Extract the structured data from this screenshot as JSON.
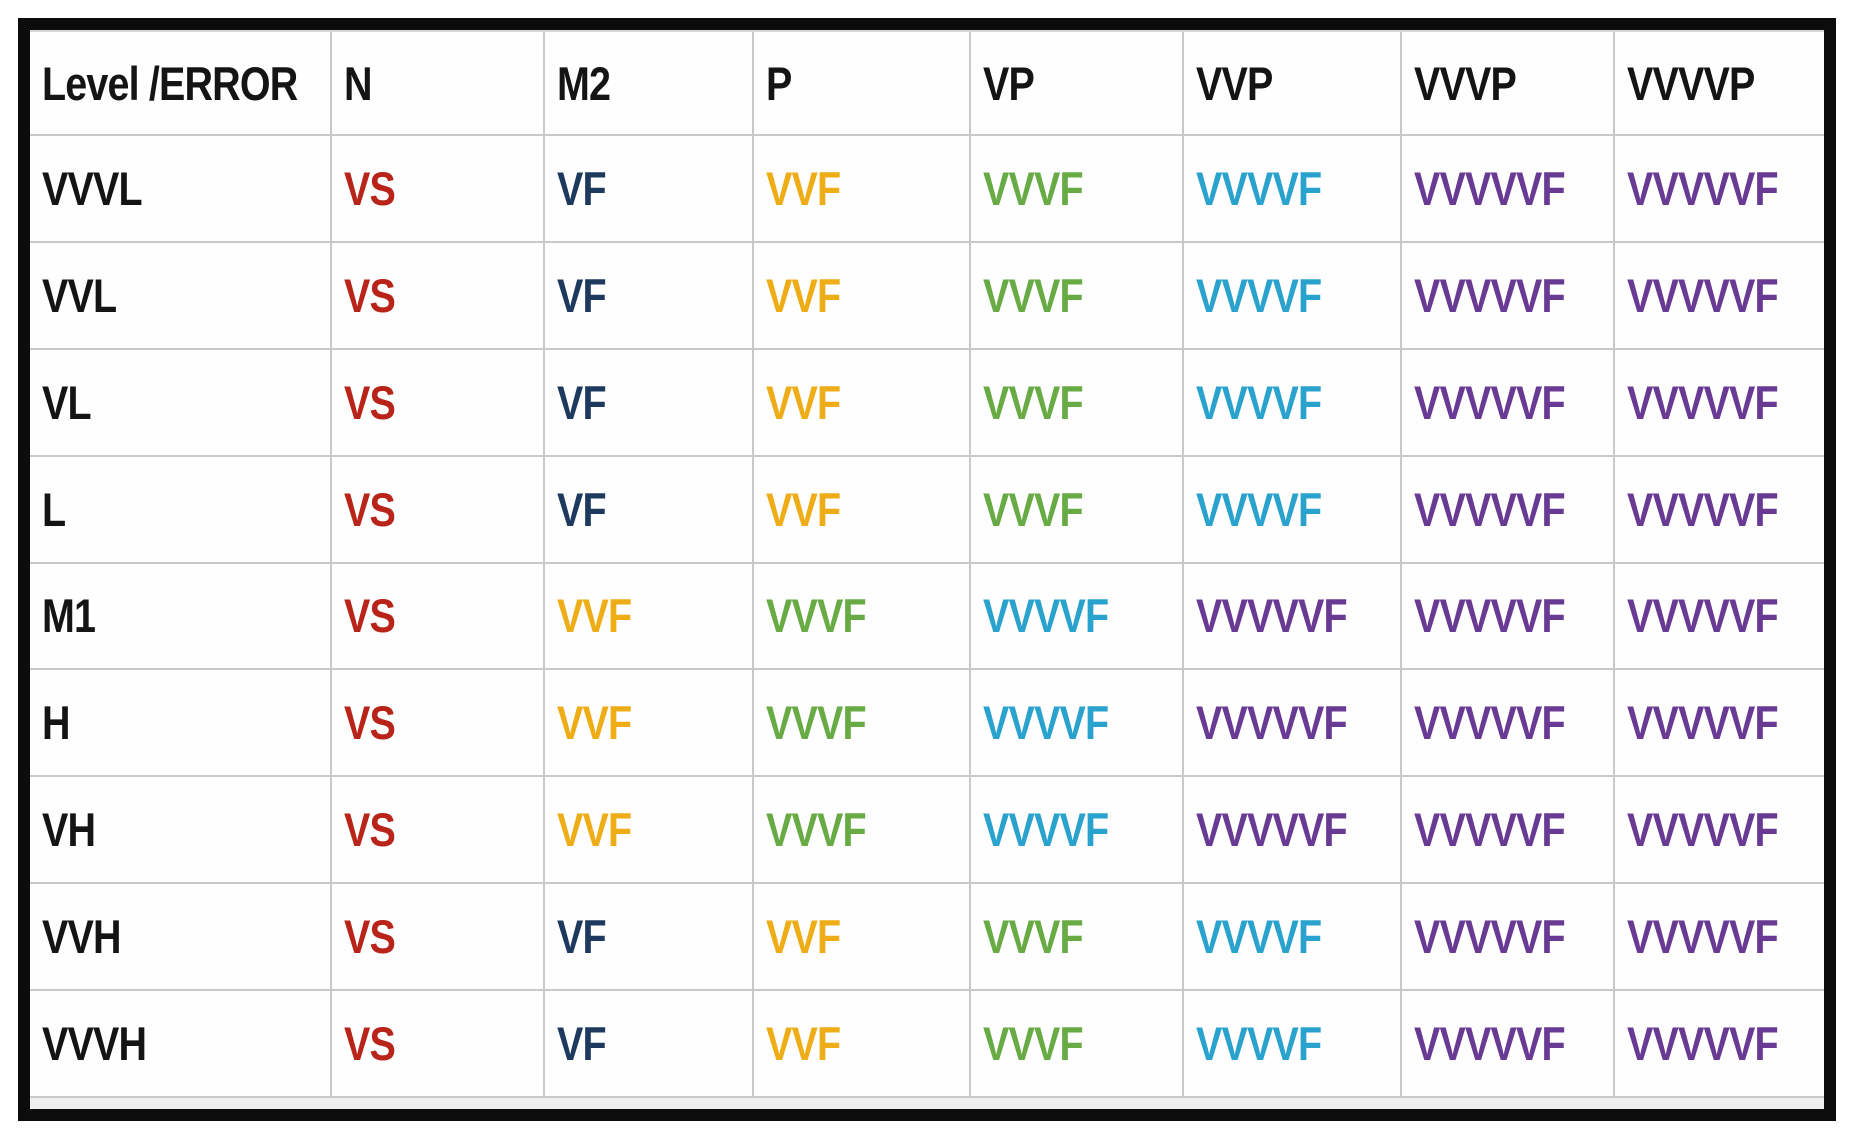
{
  "table": {
    "header": {
      "corner": "Level /ERROR",
      "columns": [
        "N",
        "M2",
        "P",
        "VP",
        "VVP",
        "VVVP",
        "VVVVP"
      ]
    },
    "palette": {
      "red": "#b9241a",
      "navy": "#1d3a5e",
      "yellow": "#eead16",
      "green": "#68ab44",
      "cyan": "#29a2cd",
      "purple": "#683a94",
      "black": "#141414"
    },
    "rows": [
      {
        "label": "VVVL",
        "cells": [
          {
            "text": "VS",
            "color": "red"
          },
          {
            "text": "VF",
            "color": "navy"
          },
          {
            "text": "VVF",
            "color": "yellow"
          },
          {
            "text": "VVVF",
            "color": "green"
          },
          {
            "text": "VVVVF",
            "color": "cyan"
          },
          {
            "text": "VVVVVF",
            "color": "purple"
          },
          {
            "text": "VVVVVF",
            "color": "purple"
          }
        ]
      },
      {
        "label": "VVL",
        "cells": [
          {
            "text": "VS",
            "color": "red"
          },
          {
            "text": "VF",
            "color": "navy"
          },
          {
            "text": "VVF",
            "color": "yellow"
          },
          {
            "text": "VVVF",
            "color": "green"
          },
          {
            "text": "VVVVF",
            "color": "cyan"
          },
          {
            "text": "VVVVVF",
            "color": "purple"
          },
          {
            "text": "VVVVVF",
            "color": "purple"
          }
        ]
      },
      {
        "label": "VL",
        "cells": [
          {
            "text": "VS",
            "color": "red"
          },
          {
            "text": "VF",
            "color": "navy"
          },
          {
            "text": "VVF",
            "color": "yellow"
          },
          {
            "text": "VVVF",
            "color": "green"
          },
          {
            "text": "VVVVF",
            "color": "cyan"
          },
          {
            "text": "VVVVVF",
            "color": "purple"
          },
          {
            "text": "VVVVVF",
            "color": "purple"
          }
        ]
      },
      {
        "label": "L",
        "cells": [
          {
            "text": "VS",
            "color": "red"
          },
          {
            "text": "VF",
            "color": "navy"
          },
          {
            "text": "VVF",
            "color": "yellow"
          },
          {
            "text": "VVVF",
            "color": "green"
          },
          {
            "text": "VVVVF",
            "color": "cyan"
          },
          {
            "text": "VVVVVF",
            "color": "purple"
          },
          {
            "text": "VVVVVF",
            "color": "purple"
          }
        ]
      },
      {
        "label": "M1",
        "cells": [
          {
            "text": "VS",
            "color": "red"
          },
          {
            "text": "VVF",
            "color": "yellow"
          },
          {
            "text": "VVVF",
            "color": "green"
          },
          {
            "text": "VVVVF",
            "color": "cyan"
          },
          {
            "text": "VVVVVF",
            "color": "purple"
          },
          {
            "text": "VVVVVF",
            "color": "purple"
          },
          {
            "text": "VVVVVF",
            "color": "purple"
          }
        ]
      },
      {
        "label": "H",
        "cells": [
          {
            "text": "VS",
            "color": "red"
          },
          {
            "text": "VVF",
            "color": "yellow"
          },
          {
            "text": "VVVF",
            "color": "green"
          },
          {
            "text": "VVVVF",
            "color": "cyan"
          },
          {
            "text": "VVVVVF",
            "color": "purple"
          },
          {
            "text": "VVVVVF",
            "color": "purple"
          },
          {
            "text": "VVVVVF",
            "color": "purple"
          }
        ]
      },
      {
        "label": "VH",
        "cells": [
          {
            "text": "VS",
            "color": "red"
          },
          {
            "text": "VVF",
            "color": "yellow"
          },
          {
            "text": "VVVF",
            "color": "green"
          },
          {
            "text": "VVVVF",
            "color": "cyan"
          },
          {
            "text": "VVVVVF",
            "color": "purple"
          },
          {
            "text": "VVVVVF",
            "color": "purple"
          },
          {
            "text": "VVVVVF",
            "color": "purple"
          }
        ]
      },
      {
        "label": "VVH",
        "cells": [
          {
            "text": "VS",
            "color": "red"
          },
          {
            "text": "VF",
            "color": "navy"
          },
          {
            "text": "VVF",
            "color": "yellow"
          },
          {
            "text": "VVVF",
            "color": "green"
          },
          {
            "text": "VVVVF",
            "color": "cyan"
          },
          {
            "text": "VVVVVF",
            "color": "purple"
          },
          {
            "text": "VVVVVF",
            "color": "purple"
          }
        ]
      },
      {
        "label": "VVVH",
        "cells": [
          {
            "text": "VS",
            "color": "red"
          },
          {
            "text": "VF",
            "color": "navy"
          },
          {
            "text": "VVF",
            "color": "yellow"
          },
          {
            "text": "VVVF",
            "color": "green"
          },
          {
            "text": "VVVVF",
            "color": "cyan"
          },
          {
            "text": "VVVVVF",
            "color": "purple"
          },
          {
            "text": "VVVVVF",
            "color": "purple"
          }
        ]
      }
    ]
  }
}
